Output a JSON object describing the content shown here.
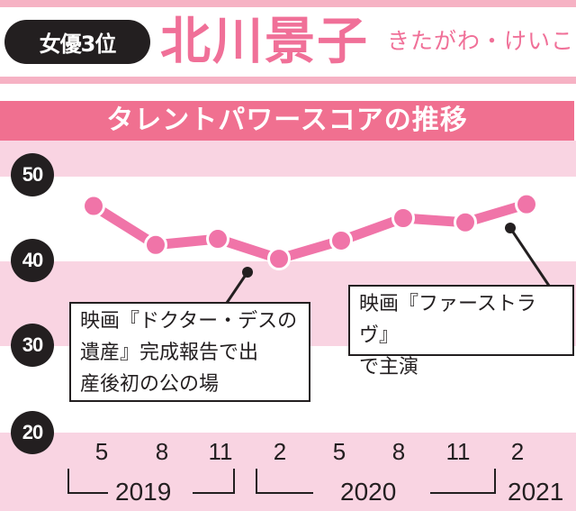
{
  "header": {
    "rank_badge": "女優3位",
    "name": "北川景子",
    "reading": "きたがわ・けいこ"
  },
  "title": "タレントパワースコアの推移",
  "colors": {
    "accent_pink": "#f07098",
    "title_band": "#f07090",
    "light_band": "#f9d4e2",
    "rule_pink": "#f6b2c4",
    "line": "#f074a8",
    "ink": "#231f20"
  },
  "axis": {
    "y_ticks": [
      "50",
      "40",
      "30",
      "20"
    ],
    "x_months": [
      "5",
      "8",
      "11",
      "2",
      "5",
      "8",
      "11",
      "2"
    ],
    "years": [
      "2019",
      "2020",
      "2021"
    ]
  },
  "annotations": {
    "left": {
      "lines": [
        "映画『ドクター・デスの",
        "遺産』完成報告で出",
        "産後初の公の場"
      ]
    },
    "right": {
      "lines": [
        "映画『ファーストラヴ』",
        "で主演"
      ]
    }
  },
  "chart_data": {
    "type": "line",
    "title": "タレントパワースコアの推移",
    "subtitle": "北川景子 (女優3位)",
    "xlabel": "",
    "ylabel": "",
    "categories": [
      "2019-05",
      "2019-08",
      "2019-11",
      "2020-02",
      "2020-05",
      "2020-08",
      "2020-11",
      "2021-02"
    ],
    "x_tick_labels": [
      "5",
      "8",
      "11",
      "2",
      "5",
      "8",
      "11",
      "2"
    ],
    "year_groups": [
      {
        "year": "2019",
        "months": [
          "5",
          "8",
          "11"
        ]
      },
      {
        "year": "2020",
        "months": [
          "2",
          "5",
          "8",
          "11"
        ]
      },
      {
        "year": "2021",
        "months": [
          "2"
        ]
      }
    ],
    "series": [
      {
        "name": "北川景子",
        "values": [
          46.4,
          41.9,
          42.6,
          40.3,
          42.4,
          45.0,
          44.5,
          46.6
        ]
      }
    ],
    "ylim": [
      20,
      50
    ],
    "y_ticks": [
      20,
      30,
      40,
      50
    ],
    "grid": "alternating horizontal bands",
    "legend": "none",
    "annotations": [
      {
        "x": "2020-02",
        "text": "映画『ドクター・デスの遺産』完成報告で出産後初の公の場"
      },
      {
        "x": "2021-02",
        "text": "映画『ファーストラヴ』で主演"
      }
    ]
  }
}
